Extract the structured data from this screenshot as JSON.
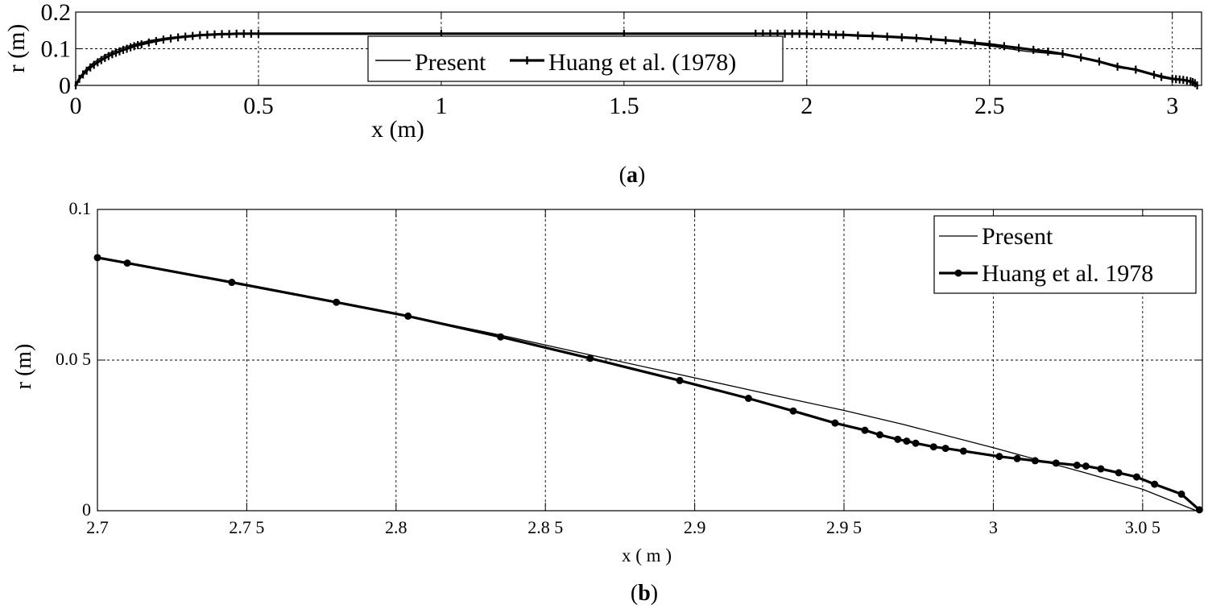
{
  "chart_data": [
    {
      "type": "line",
      "panel_label": "a",
      "xlabel": "x (m)",
      "ylabel": "r (m)",
      "xlim": [
        0,
        3.08
      ],
      "ylim": [
        0,
        0.2
      ],
      "xticks": [
        0,
        0.5,
        1,
        1.5,
        2,
        2.5,
        3
      ],
      "xtick_labels": [
        "0",
        "0.5",
        "1",
        "1.5",
        "2",
        "2.5",
        "3"
      ],
      "yticks": [
        0,
        0.1,
        0.2
      ],
      "ytick_labels": [
        "0",
        "0.1",
        "0.2"
      ],
      "grid": true,
      "legend_position": "center-bottom",
      "series": [
        {
          "name": "Present",
          "style": "thin",
          "x": [
            0,
            0.01,
            0.03,
            0.05,
            0.08,
            0.12,
            0.16,
            0.2,
            0.25,
            0.3,
            0.35,
            0.4,
            0.45,
            0.5,
            1.0,
            1.5,
            1.86,
            2.0,
            2.1,
            2.2,
            2.3,
            2.4,
            2.5,
            2.6,
            2.7,
            2.8,
            2.9,
            2.95,
            3.0,
            3.03,
            3.05,
            3.068
          ],
          "y": [
            0,
            0.022,
            0.046,
            0.063,
            0.082,
            0.1,
            0.112,
            0.122,
            0.13,
            0.135,
            0.138,
            0.14,
            0.141,
            0.141,
            0.141,
            0.141,
            0.141,
            0.141,
            0.139,
            0.135,
            0.129,
            0.12,
            0.108,
            0.093,
            0.084,
            0.065,
            0.043,
            0.031,
            0.02,
            0.014,
            0.008,
            0
          ]
        },
        {
          "name": "Huang et al. (1978)",
          "style": "thick-with-plus-markers",
          "x": [
            0,
            0.01,
            0.02,
            0.03,
            0.04,
            0.05,
            0.06,
            0.07,
            0.08,
            0.09,
            0.1,
            0.11,
            0.12,
            0.13,
            0.14,
            0.15,
            0.16,
            0.17,
            0.18,
            0.2,
            0.22,
            0.24,
            0.26,
            0.28,
            0.3,
            0.32,
            0.34,
            0.36,
            0.38,
            0.4,
            0.42,
            0.44,
            0.46,
            0.48,
            0.5,
            1.0,
            1.5,
            1.86,
            1.88,
            1.9,
            1.92,
            1.94,
            1.96,
            1.98,
            2.0,
            2.02,
            2.04,
            2.06,
            2.08,
            2.1,
            2.14,
            2.18,
            2.22,
            2.26,
            2.3,
            2.34,
            2.38,
            2.42,
            2.46,
            2.5,
            2.54,
            2.58,
            2.62,
            2.66,
            2.7,
            2.75,
            2.8,
            2.85,
            2.9,
            2.95,
            2.97,
            3.0,
            3.01,
            3.02,
            3.03,
            3.04,
            3.05,
            3.056,
            3.062,
            3.068
          ],
          "y": [
            0,
            0.018,
            0.03,
            0.04,
            0.049,
            0.056,
            0.063,
            0.069,
            0.075,
            0.08,
            0.085,
            0.089,
            0.093,
            0.097,
            0.1,
            0.104,
            0.107,
            0.11,
            0.112,
            0.117,
            0.121,
            0.125,
            0.128,
            0.131,
            0.133,
            0.135,
            0.137,
            0.138,
            0.139,
            0.14,
            0.14,
            0.141,
            0.141,
            0.141,
            0.141,
            0.141,
            0.141,
            0.141,
            0.141,
            0.141,
            0.141,
            0.141,
            0.141,
            0.141,
            0.141,
            0.14,
            0.14,
            0.139,
            0.138,
            0.138,
            0.136,
            0.135,
            0.133,
            0.131,
            0.129,
            0.126,
            0.123,
            0.12,
            0.116,
            0.112,
            0.107,
            0.102,
            0.097,
            0.092,
            0.086,
            0.076,
            0.065,
            0.051,
            0.043,
            0.029,
            0.023,
            0.018,
            0.017,
            0.016,
            0.015,
            0.013,
            0.011,
            0.009,
            0.006,
            0
          ]
        }
      ]
    },
    {
      "type": "line",
      "panel_label": "b",
      "xlabel": "x ( m )",
      "ylabel": "r (m)",
      "xlim": [
        2.7,
        3.07
      ],
      "ylim": [
        0,
        0.1
      ],
      "xticks": [
        2.7,
        2.75,
        2.8,
        2.85,
        2.9,
        2.95,
        3.0,
        3.05
      ],
      "xtick_labels": [
        "2.7",
        "2.7 5",
        "2.8",
        "2.8 5",
        "2.9",
        "2.9 5",
        "3",
        "3.0 5"
      ],
      "yticks": [
        0,
        0.05,
        0.1
      ],
      "ytick_labels": [
        "0",
        "0.0 5",
        "0.1"
      ],
      "grid": true,
      "legend_position": "top-right",
      "series": [
        {
          "name": "Present",
          "style": "thin",
          "x": [
            2.7,
            2.71,
            2.745,
            2.78,
            2.804,
            2.835,
            2.865,
            2.895,
            2.918,
            2.933,
            2.95,
            2.97,
            3.0,
            3.03,
            3.05,
            3.068
          ],
          "y": [
            0.084,
            0.0822,
            0.0758,
            0.0692,
            0.0646,
            0.0583,
            0.0517,
            0.0452,
            0.0402,
            0.0369,
            0.0333,
            0.0286,
            0.0209,
            0.0128,
            0.0071,
            0
          ]
        },
        {
          "name": "Huang et al. 1978",
          "style": "thick-with-dot-markers",
          "x": [
            2.7,
            2.71,
            2.745,
            2.78,
            2.804,
            2.835,
            2.865,
            2.895,
            2.918,
            2.933,
            2.947,
            2.957,
            2.962,
            2.968,
            2.971,
            2.974,
            2.98,
            2.984,
            2.99,
            3.002,
            3.008,
            3.014,
            3.021,
            3.028,
            3.031,
            3.036,
            3.042,
            3.048,
            3.054,
            3.063,
            3.069
          ],
          "y": [
            0.084,
            0.0822,
            0.0758,
            0.0692,
            0.0646,
            0.0577,
            0.0506,
            0.0432,
            0.0373,
            0.0331,
            0.0291,
            0.0267,
            0.0252,
            0.0237,
            0.0231,
            0.0224,
            0.0212,
            0.0207,
            0.0198,
            0.018,
            0.0173,
            0.0166,
            0.0158,
            0.0151,
            0.0148,
            0.0139,
            0.0126,
            0.0112,
            0.0088,
            0.0055,
            0.0003
          ]
        }
      ]
    }
  ]
}
